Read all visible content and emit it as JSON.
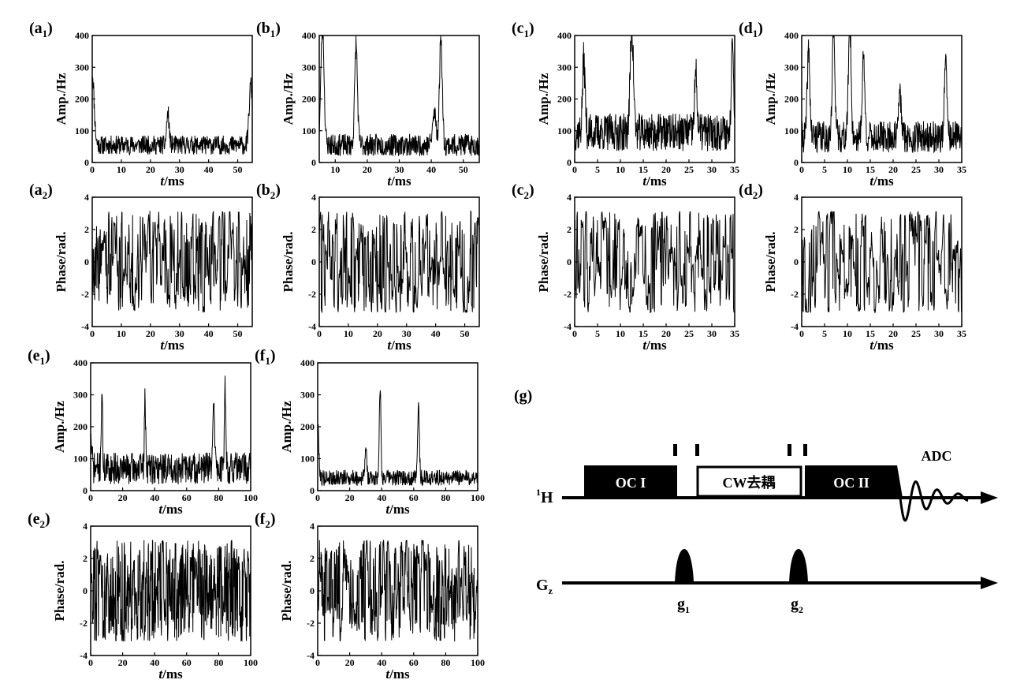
{
  "chart_data": [
    {
      "id": "a1",
      "label": "a",
      "sub": "1",
      "type": "line",
      "kind": "amp",
      "ylabel": "Amp./Hz",
      "xlabel_italic": "t",
      "xlabel_unit": "/ms",
      "xlim": [
        0,
        55
      ],
      "ylim": [
        0,
        400
      ],
      "xticks": [
        0,
        10,
        20,
        30,
        40,
        50
      ],
      "yticks": [
        0,
        100,
        200,
        300,
        400
      ],
      "baseline": 55,
      "noise": 30,
      "peaks": [
        [
          0,
          230,
          0.9
        ],
        [
          26,
          100,
          0.6
        ],
        [
          54.5,
          190,
          0.8
        ]
      ],
      "seed": 11
    },
    {
      "id": "b1",
      "label": "b",
      "sub": "1",
      "type": "line",
      "kind": "amp",
      "ylabel": "Amp./Hz",
      "xlabel_italic": "t",
      "xlabel_unit": "/ms",
      "xlim": [
        5,
        55
      ],
      "ylim": [
        0,
        400
      ],
      "xticks": [
        10,
        20,
        30,
        40,
        50
      ],
      "yticks": [
        0,
        100,
        200,
        300,
        400
      ],
      "baseline": 55,
      "noise": 35,
      "peaks": [
        [
          6,
          380,
          0.7
        ],
        [
          16.5,
          320,
          0.6
        ],
        [
          43,
          340,
          0.6
        ],
        [
          41,
          100,
          0.8
        ]
      ],
      "seed": 23
    },
    {
      "id": "c1",
      "label": "c",
      "sub": "1",
      "type": "line",
      "kind": "amp",
      "ylabel": "Amp./Hz",
      "xlabel_italic": "t",
      "xlabel_unit": "/ms",
      "xlim": [
        0,
        35
      ],
      "ylim": [
        0,
        400
      ],
      "xticks": [
        0,
        5,
        10,
        15,
        20,
        25,
        30,
        35
      ],
      "yticks": [
        0,
        100,
        200,
        300,
        400
      ],
      "baseline": 95,
      "noise": 60,
      "peaks": [
        [
          2,
          230,
          0.4
        ],
        [
          12.5,
          330,
          0.5
        ],
        [
          26.5,
          180,
          0.4
        ],
        [
          34.5,
          340,
          0.3
        ]
      ],
      "seed": 37
    },
    {
      "id": "d1",
      "label": "d",
      "sub": "1",
      "type": "line",
      "kind": "amp",
      "ylabel": "Amp./Hz",
      "xlabel_italic": "t",
      "xlabel_unit": "/ms",
      "xlim": [
        0,
        35
      ],
      "ylim": [
        0,
        400
      ],
      "xticks": [
        0,
        5,
        10,
        15,
        20,
        25,
        30,
        35
      ],
      "yticks": [
        0,
        100,
        200,
        300,
        400
      ],
      "baseline": 80,
      "noise": 50,
      "peaks": [
        [
          1.5,
          270,
          0.4
        ],
        [
          7,
          350,
          0.4
        ],
        [
          10.5,
          380,
          0.4
        ],
        [
          13.5,
          250,
          0.4
        ],
        [
          21.5,
          140,
          0.4
        ],
        [
          31.5,
          230,
          0.4
        ]
      ],
      "seed": 41
    },
    {
      "id": "a2",
      "label": "a",
      "sub": "2",
      "type": "line",
      "kind": "phase",
      "ylabel": "Phase/rad.",
      "xlabel_italic": "t",
      "xlabel_unit": "/ms",
      "xlim": [
        0,
        55
      ],
      "ylim": [
        -4,
        4
      ],
      "xticks": [
        0,
        10,
        20,
        30,
        40,
        50
      ],
      "yticks": [
        -4,
        -2,
        0,
        2,
        4
      ],
      "density": 1.0,
      "seed": 53
    },
    {
      "id": "b2",
      "label": "b",
      "sub": "2",
      "type": "line",
      "kind": "phase",
      "ylabel": "Phase/rad.",
      "xlabel_italic": "t",
      "xlabel_unit": "/ms",
      "xlim": [
        0,
        55
      ],
      "ylim": [
        -4,
        4
      ],
      "xticks": [
        0,
        10,
        20,
        30,
        40,
        50
      ],
      "yticks": [
        -4,
        -2,
        0,
        2,
        4
      ],
      "density": 0.9,
      "seed": 59
    },
    {
      "id": "c2",
      "label": "c",
      "sub": "2",
      "type": "line",
      "kind": "phase",
      "ylabel": "Phase/rad.",
      "xlabel_italic": "t",
      "xlabel_unit": "/ms",
      "xlim": [
        0,
        35
      ],
      "ylim": [
        -4,
        4
      ],
      "xticks": [
        0,
        5,
        10,
        15,
        20,
        25,
        30,
        35
      ],
      "yticks": [
        -4,
        -2,
        0,
        2,
        4
      ],
      "density": 0.8,
      "seed": 61
    },
    {
      "id": "d2",
      "label": "d",
      "sub": "2",
      "type": "line",
      "kind": "phase",
      "ylabel": "Phase/rad.",
      "xlabel_italic": "t",
      "xlabel_unit": "/ms",
      "xlim": [
        0,
        35
      ],
      "ylim": [
        -4,
        4
      ],
      "xticks": [
        0,
        5,
        10,
        15,
        20,
        25,
        30,
        35
      ],
      "yticks": [
        -4,
        -2,
        0,
        2,
        4
      ],
      "density": 0.8,
      "seed": 67
    },
    {
      "id": "e1",
      "label": "e",
      "sub": "1",
      "type": "line",
      "kind": "amp",
      "ylabel": "Amp./Hz",
      "xlabel_italic": "t",
      "xlabel_unit": "/ms",
      "xlim": [
        0,
        100
      ],
      "ylim": [
        0,
        400
      ],
      "xticks": [
        0,
        20,
        40,
        60,
        80,
        100
      ],
      "yticks": [
        0,
        100,
        200,
        300,
        400
      ],
      "baseline": 70,
      "noise": 50,
      "peaks": [
        [
          7,
          240,
          0.6
        ],
        [
          34,
          210,
          0.6
        ],
        [
          77,
          240,
          0.7
        ],
        [
          84,
          280,
          0.6
        ],
        [
          0,
          90,
          1
        ]
      ],
      "seed": 71
    },
    {
      "id": "f1",
      "label": "f",
      "sub": "1",
      "type": "line",
      "kind": "amp",
      "ylabel": "Amp./Hz",
      "xlabel_italic": "t",
      "xlabel_unit": "/ms",
      "xlim": [
        0,
        100
      ],
      "ylim": [
        0,
        400
      ],
      "xticks": [
        0,
        20,
        40,
        60,
        80,
        100
      ],
      "yticks": [
        0,
        100,
        200,
        300,
        400
      ],
      "baseline": 40,
      "noise": 25,
      "peaks": [
        [
          0,
          170,
          1
        ],
        [
          39,
          290,
          0.7
        ],
        [
          63,
          250,
          0.7
        ],
        [
          30,
          90,
          0.8
        ]
      ],
      "seed": 79
    },
    {
      "id": "e2",
      "label": "e",
      "sub": "2",
      "type": "line",
      "kind": "phase",
      "ylabel": "Phase/rad.",
      "xlabel_italic": "t",
      "xlabel_unit": "/ms",
      "xlim": [
        0,
        100
      ],
      "ylim": [
        -4,
        4
      ],
      "xticks": [
        0,
        20,
        40,
        60,
        80,
        100
      ],
      "yticks": [
        -4,
        -2,
        0,
        2,
        4
      ],
      "density": 1.6,
      "seed": 83
    },
    {
      "id": "f2",
      "label": "f",
      "sub": "2",
      "type": "line",
      "kind": "phase",
      "ylabel": "Phase/rad.",
      "xlabel_italic": "t",
      "xlabel_unit": "/ms",
      "xlim": [
        0,
        100
      ],
      "ylim": [
        -4,
        4
      ],
      "xticks": [
        0,
        20,
        40,
        60,
        80,
        100
      ],
      "yticks": [
        -4,
        -2,
        0,
        2,
        4
      ],
      "density": 1.2,
      "seed": 89
    }
  ],
  "sequence": {
    "label": "g",
    "h_channel": "H",
    "h_sup": "1",
    "blocks": [
      "OC I",
      "CW去耦",
      "OC II"
    ],
    "adc": "ADC",
    "gz_main": "G",
    "gz_sub": "z",
    "gradients": [
      {
        "main": "g",
        "sub": "1"
      },
      {
        "main": "g",
        "sub": "2"
      }
    ]
  }
}
